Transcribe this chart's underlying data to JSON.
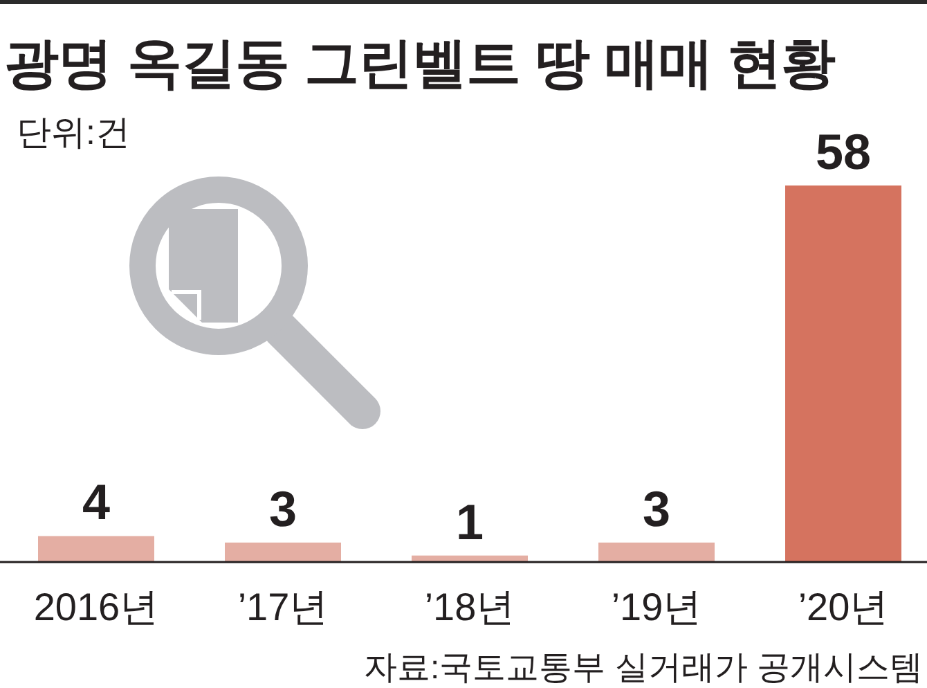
{
  "chart_data": {
    "type": "bar",
    "title": "광명 옥길동 그린벨트 땅 매매 현황",
    "subtitle": "단위:건",
    "categories": [
      "2016년",
      "’17년",
      "’18년",
      "’19년",
      "’20년"
    ],
    "values": [
      4,
      3,
      1,
      3,
      58
    ],
    "colors": [
      "#e4aea3",
      "#e4aea3",
      "#e4aea3",
      "#e4aea3",
      "#d5735f"
    ],
    "data_labels": true,
    "annotations": [
      "자료:국토교통부 실거래가 공개시스템"
    ]
  }
}
